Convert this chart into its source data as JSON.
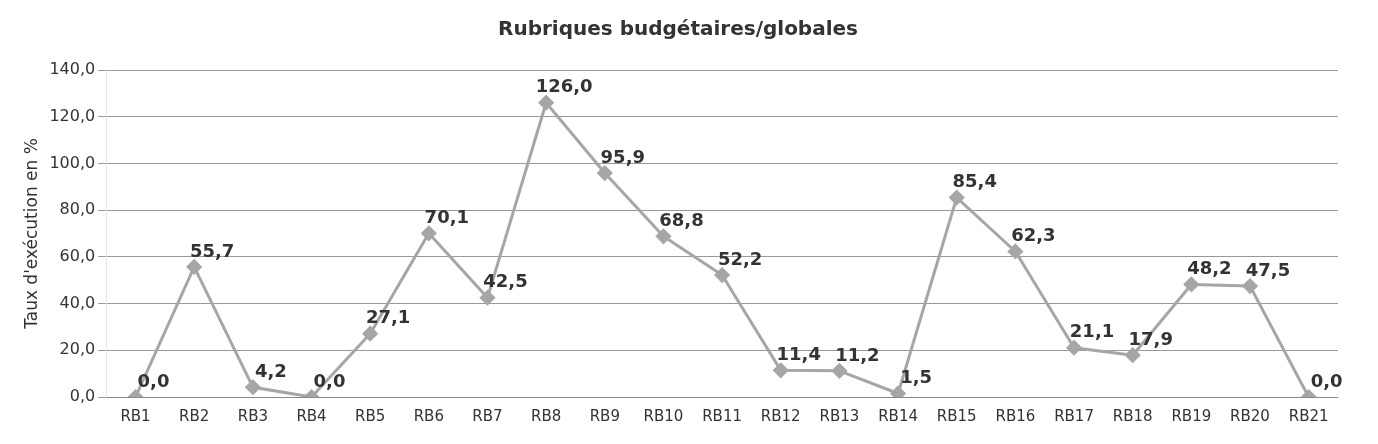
{
  "chart_data": {
    "type": "line",
    "title": "Rubriques budgétaires/globales",
    "ylabel": "Taux d'exécution en %",
    "categories": [
      "RB1",
      "RB2",
      "RB3",
      "RB4",
      "RB5",
      "RB6",
      "RB7",
      "RB8",
      "RB9",
      "RB10",
      "RB11",
      "RB12",
      "RB13",
      "RB14",
      "RB15",
      "RB16",
      "RB17",
      "RB18",
      "RB19",
      "RB20",
      "RB21"
    ],
    "series": [
      {
        "color": "#a6a6a6",
        "values": [
          0.0,
          55.7,
          4.2,
          0.0,
          27.1,
          70.1,
          42.5,
          126.0,
          95.9,
          68.8,
          52.2,
          11.4,
          11.2,
          1.5,
          85.4,
          62.3,
          21.1,
          17.9,
          48.2,
          47.5,
          0.0
        ],
        "value_labels": [
          "0,0",
          "55,7",
          "4,2",
          "0,0",
          "27,1",
          "70,1",
          "42,5",
          "126,0",
          "95,9",
          "68,8",
          "52,2",
          "11,4",
          "11,2",
          "1,5",
          "85,4",
          "62,3",
          "21,1",
          "17,9",
          "48,2",
          "47,5",
          "0,0"
        ]
      }
    ],
    "ylim": [
      0,
      140
    ],
    "yticks": [
      {
        "value": 0,
        "label": "0,0"
      },
      {
        "value": 20,
        "label": "20,0"
      },
      {
        "value": 40,
        "label": "40,0"
      },
      {
        "value": 60,
        "label": "60,0"
      },
      {
        "value": 80,
        "label": "80,0"
      },
      {
        "value": 100,
        "label": "100,0"
      },
      {
        "value": 120,
        "label": "120,0"
      },
      {
        "value": 140,
        "label": "140,0"
      }
    ],
    "grid": "y",
    "legend": false,
    "marker": "diamond",
    "line_style": "solid"
  }
}
